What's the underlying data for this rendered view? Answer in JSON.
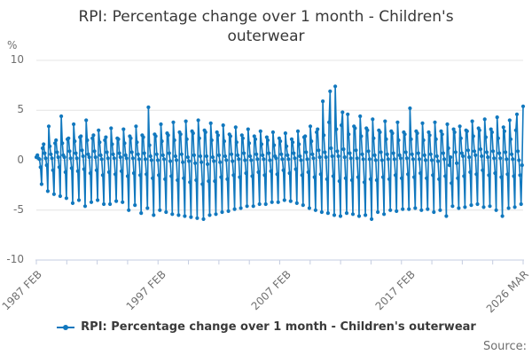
{
  "title": "RPI: Percentage change over 1 month - Children's outerwear",
  "y_axis_unit": "%",
  "legend": {
    "label": "RPI: Percentage change over 1 month - Children's outerwear"
  },
  "source_label": "Source:",
  "colors": {
    "line": "#1178be",
    "grid": "#e4e4e4",
    "axis": "#c5cde0",
    "tick_text": "#6f6f6f",
    "title_text": "#383838"
  },
  "chart_data": {
    "type": "line",
    "title": "RPI: Percentage change over 1 month - Children's outerwear",
    "series_name": "RPI: Percentage change over 1 month - Children's outerwear",
    "unit": "%",
    "frequency": "monthly",
    "x_start": "1987 FEB",
    "x_end": "2026 MAR",
    "ylim": [
      -10,
      10
    ],
    "yticks": [
      10,
      5,
      0,
      -5,
      -10
    ],
    "grid": true,
    "legend_position": "bottom",
    "x_axis": {
      "labels": [
        {
          "label": "1987 FEB",
          "pos": 0.0
        },
        {
          "label": "1997 FEB",
          "pos": 0.2559
        },
        {
          "label": "2007 FEB",
          "pos": 0.5117
        },
        {
          "label": "2017 FEB",
          "pos": 0.7676
        },
        {
          "label": "2026 MAR",
          "pos": 1.0
        }
      ],
      "minor_tick_count": 17
    },
    "marker": "circle",
    "values": [
      0.3,
      0.5,
      0.2,
      0.1,
      -0.7,
      -2.4,
      1.2,
      1.6,
      0.7,
      0.2,
      -0.5,
      -3.1,
      3.4,
      1.4,
      0.6,
      0.2,
      -1.0,
      -3.4,
      1.7,
      2.0,
      0.8,
      0.3,
      -0.7,
      -3.6,
      4.4,
      1.7,
      0.5,
      0.3,
      -1.2,
      -3.8,
      2.1,
      2.2,
      0.9,
      0.2,
      -0.8,
      -4.3,
      3.6,
      1.9,
      0.7,
      0.2,
      -1.1,
      -4.0,
      2.3,
      2.4,
      1.0,
      0.4,
      -0.9,
      -4.6,
      4.0,
      2.0,
      0.6,
      0.3,
      -1.3,
      -4.2,
      2.2,
      2.5,
      0.9,
      0.3,
      -1.0,
      -4.0,
      3.0,
      1.8,
      0.5,
      0.1,
      -1.5,
      -4.4,
      2.0,
      2.3,
      0.8,
      0.2,
      -1.2,
      -4.4,
      3.2,
      1.6,
      0.6,
      0.2,
      -1.4,
      -4.1,
      2.2,
      2.1,
      0.7,
      0.3,
      -1.1,
      -4.2,
      3.1,
      1.7,
      0.5,
      0.2,
      -1.6,
      -5.0,
      2.4,
      2.2,
      0.8,
      0.2,
      -1.3,
      -4.5,
      3.4,
      1.8,
      0.6,
      0.1,
      -1.5,
      -5.3,
      2.5,
      2.3,
      0.7,
      0.1,
      -1.4,
      -4.8,
      5.3,
      1.5,
      0.4,
      0.0,
      -1.8,
      -5.5,
      2.6,
      2.4,
      0.6,
      0.0,
      -1.5,
      -5.0,
      3.6,
      1.9,
      0.5,
      0.1,
      -1.9,
      -5.2,
      2.7,
      2.5,
      0.7,
      -0.1,
      -1.6,
      -5.4,
      3.8,
      2.0,
      0.4,
      0.0,
      -2.0,
      -5.5,
      2.8,
      2.6,
      0.6,
      -0.2,
      -1.8,
      -5.6,
      3.9,
      2.1,
      0.3,
      -0.1,
      -2.2,
      -5.7,
      2.9,
      2.7,
      0.5,
      -0.3,
      -2.0,
      -5.8,
      4.0,
      2.2,
      0.4,
      -0.2,
      -2.4,
      -5.9,
      3.0,
      2.8,
      0.4,
      -0.4,
      -2.1,
      -5.5,
      3.7,
      2.0,
      0.3,
      -0.1,
      -2.1,
      -5.4,
      2.8,
      2.5,
      0.5,
      -0.2,
      -1.7,
      -5.2,
      3.5,
      1.9,
      0.4,
      0.0,
      -1.9,
      -5.1,
      2.6,
      2.4,
      0.6,
      -0.1,
      -1.5,
      -4.9,
      3.3,
      1.8,
      0.5,
      0.1,
      -1.7,
      -4.8,
      2.5,
      2.2,
      0.7,
      0.0,
      -1.3,
      -4.6,
      3.1,
      1.7,
      0.4,
      0.0,
      -1.6,
      -4.6,
      2.4,
      2.1,
      0.6,
      0.1,
      -1.2,
      -4.4,
      2.9,
      1.6,
      0.5,
      0.1,
      -1.5,
      -4.4,
      2.3,
      2.0,
      0.7,
      0.0,
      -1.1,
      -4.2,
      2.8,
      1.5,
      0.4,
      0.2,
      -1.4,
      -4.2,
      2.2,
      1.9,
      0.6,
      0.1,
      -1.0,
      -4.0,
      2.7,
      1.4,
      0.5,
      0.1,
      -1.3,
      -4.1,
      2.1,
      1.8,
      0.7,
      0.2,
      -0.9,
      -4.3,
      2.9,
      1.6,
      0.4,
      0.0,
      -1.5,
      -4.5,
      2.3,
      2.4,
      0.8,
      0.1,
      -1.2,
      -4.8,
      3.4,
      1.9,
      0.6,
      0.2,
      -1.7,
      -5.0,
      2.8,
      3.1,
      1.0,
      0.3,
      -1.4,
      -5.2,
      5.9,
      2.5,
      0.8,
      0.3,
      -1.9,
      -5.3,
      3.8,
      6.9,
      1.2,
      0.4,
      -1.6,
      -5.5,
      7.4,
      3.1,
      0.9,
      0.4,
      -2.1,
      -5.6,
      3.5,
      4.8,
      1.1,
      0.3,
      -1.8,
      -5.3,
      4.6,
      2.6,
      0.7,
      0.2,
      -2.0,
      -5.4,
      3.4,
      3.2,
      1.0,
      0.2,
      -1.7,
      -5.6,
      4.4,
      2.4,
      0.6,
      0.1,
      -2.2,
      -5.5,
      3.2,
      3.0,
      0.9,
      0.1,
      -1.9,
      -5.9,
      4.1,
      2.2,
      0.5,
      0.0,
      -2.0,
      -5.2,
      3.0,
      2.8,
      0.8,
      0.0,
      -1.7,
      -5.4,
      3.9,
      2.1,
      0.6,
      0.1,
      -1.9,
      -5.0,
      2.9,
      2.7,
      0.7,
      0.1,
      -1.5,
      -5.1,
      3.8,
      2.0,
      0.5,
      0.2,
      -1.8,
      -4.9,
      2.8,
      2.6,
      0.8,
      0.2,
      -1.4,
      -4.9,
      5.2,
      2.1,
      0.6,
      0.1,
      -1.7,
      -4.8,
      2.9,
      2.7,
      0.7,
      0.1,
      -1.3,
      -5.0,
      3.7,
      2.0,
      0.5,
      0.0,
      -1.8,
      -4.9,
      2.8,
      2.5,
      0.6,
      0.0,
      -1.5,
      -5.2,
      3.8,
      2.1,
      0.4,
      -0.1,
      -1.9,
      -5.0,
      2.9,
      2.6,
      0.7,
      0.1,
      -1.6,
      -5.6,
      3.6,
      1.2,
      -0.5,
      0.3,
      -2.3,
      -4.6,
      3.1,
      2.8,
      0.8,
      -0.3,
      -1.8,
      -4.8,
      3.4,
      2.2,
      0.7,
      0.4,
      -1.6,
      -4.7,
      3.0,
      2.9,
      1.0,
      0.3,
      -1.2,
      -4.5,
      3.9,
      2.4,
      0.9,
      0.5,
      -1.4,
      -4.4,
      3.2,
      3.0,
      1.1,
      0.4,
      -1.0,
      -4.7,
      4.1,
      2.3,
      0.8,
      0.3,
      -1.5,
      -4.6,
      3.1,
      2.8,
      0.9,
      0.2,
      -1.3,
      -5.0,
      4.3,
      2.2,
      0.7,
      0.2,
      -1.7,
      -5.6,
      3.3,
      2.9,
      0.8,
      0.1,
      -1.4,
      -4.8,
      4.0,
      2.1,
      0.6,
      0.1,
      -1.6,
      -4.7,
      3.0,
      4.6,
      0.9,
      0.0,
      -1.5,
      -4.4,
      -0.5,
      5.4
    ]
  }
}
